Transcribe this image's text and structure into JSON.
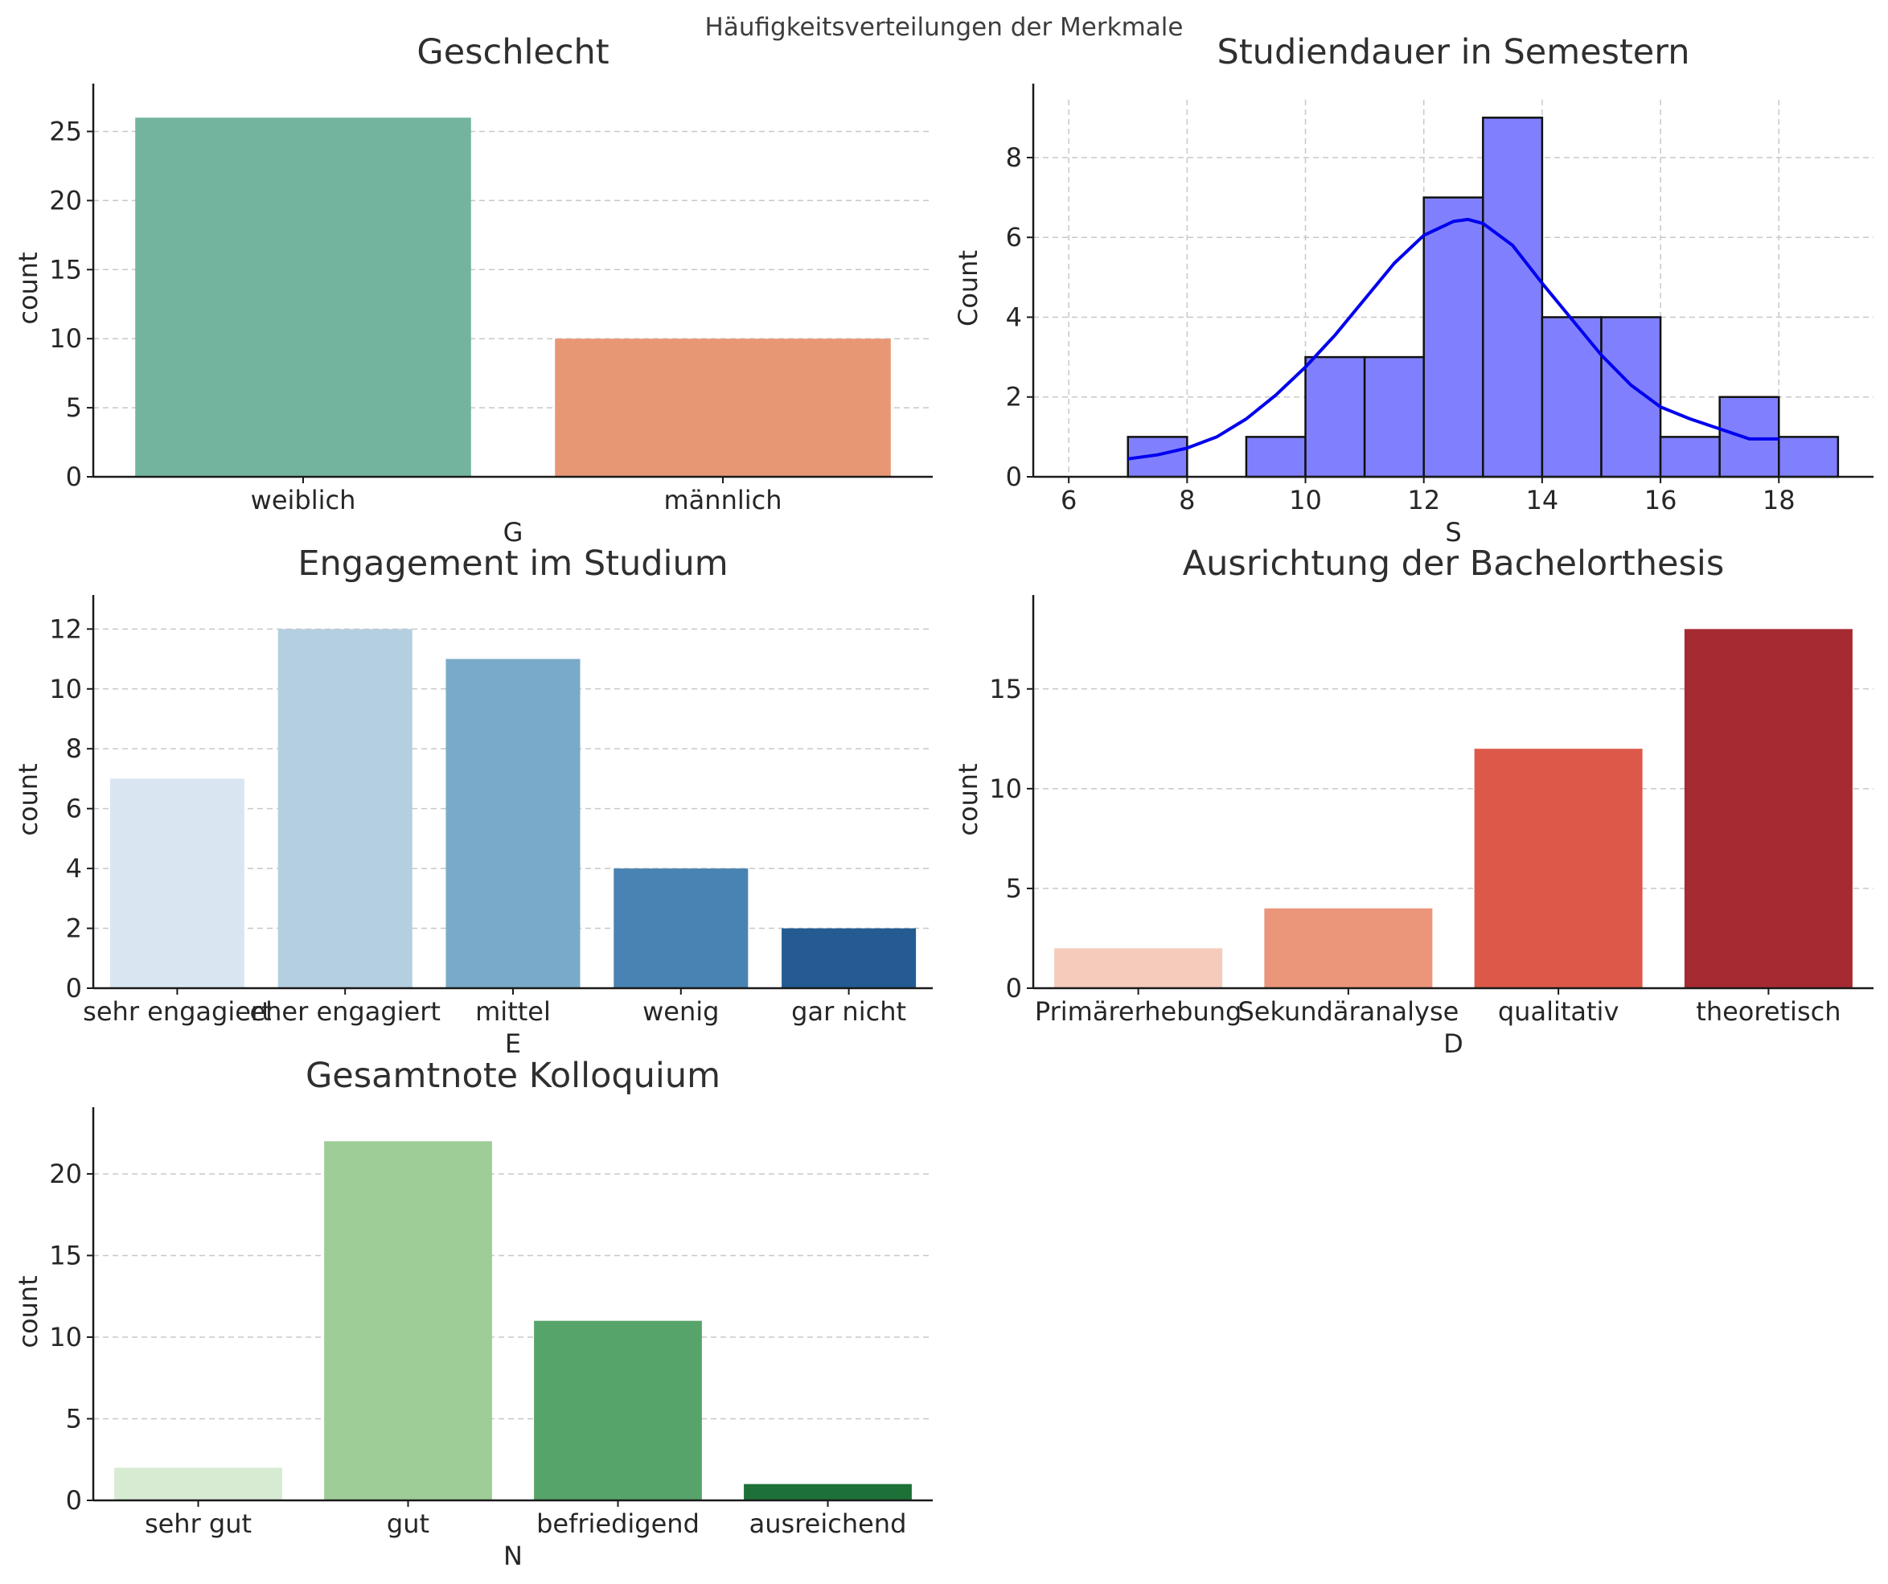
{
  "figure": {
    "suptitle": "Häufigkeitsverteilungen der Merkmale"
  },
  "chart_data": [
    {
      "type": "bar",
      "title": "Geschlecht",
      "xlabel": "G",
      "ylabel": "count",
      "categories": [
        "weiblich",
        "männlich"
      ],
      "values": [
        26,
        10
      ],
      "colors": [
        "#73b49f",
        "#e89775"
      ],
      "ylim": [
        0,
        27.3
      ],
      "yticks": [
        0,
        5,
        10,
        15,
        20,
        25
      ],
      "grid": "y"
    },
    {
      "type": "histogram",
      "title": "Studiendauer in Semestern",
      "xlabel": "S",
      "ylabel": "Count",
      "bin_edges": [
        7,
        8,
        9,
        10,
        11,
        12,
        13,
        14,
        15,
        16,
        17,
        18,
        19
      ],
      "counts": [
        1,
        0,
        1,
        3,
        3,
        7,
        9,
        4,
        4,
        1,
        2,
        1
      ],
      "bar_color": "#8080ff",
      "kde": {
        "color": "#0000ee",
        "x": [
          7,
          7.5,
          8,
          8.5,
          9,
          9.5,
          10,
          10.5,
          11,
          11.5,
          12,
          12.5,
          12.75,
          13,
          13.5,
          14,
          14.5,
          15,
          15.5,
          16,
          16.5,
          17,
          17.5,
          18
        ],
        "y": [
          0.45,
          0.55,
          0.72,
          1.0,
          1.45,
          2.05,
          2.75,
          3.55,
          4.45,
          5.35,
          6.05,
          6.4,
          6.45,
          6.35,
          5.8,
          4.85,
          3.95,
          3.05,
          2.3,
          1.75,
          1.45,
          1.2,
          0.95,
          0.95
        ]
      },
      "xlim": [
        5.4,
        19.6
      ],
      "ylim": [
        0,
        9.45
      ],
      "xticks": [
        6,
        8,
        10,
        12,
        14,
        16,
        18
      ],
      "yticks": [
        0,
        2,
        4,
        6,
        8
      ],
      "grid": "both"
    },
    {
      "type": "bar",
      "title": "Engagement im Studium",
      "xlabel": "E",
      "ylabel": "count",
      "categories": [
        "sehr engagiert",
        "eher engagiert",
        "mittel",
        "wenig",
        "gar nicht"
      ],
      "values": [
        7,
        12,
        11,
        4,
        2
      ],
      "colors": [
        "#d9e6f2",
        "#b3cfe0",
        "#79aac9",
        "#4883b3",
        "#235b92"
      ],
      "ylim": [
        0,
        12.6
      ],
      "yticks": [
        0,
        2,
        4,
        6,
        8,
        10,
        12
      ],
      "grid": "y"
    },
    {
      "type": "bar",
      "title": "Ausrichtung der Bachelorthesis",
      "xlabel": "D",
      "ylabel": "count",
      "categories": [
        "Primärerhebung",
        "Sekundäranalyse",
        "qualitativ",
        "theoretisch"
      ],
      "values": [
        2,
        4,
        12,
        18
      ],
      "colors": [
        "#f5cbbc",
        "#eb957a",
        "#dc594a",
        "#a62a31"
      ],
      "ylim": [
        0,
        18.9
      ],
      "yticks": [
        0,
        5,
        10,
        15
      ],
      "grid": "y"
    },
    {
      "type": "bar",
      "title": "Gesamtnote Kolloquium",
      "xlabel": "N",
      "ylabel": "count",
      "categories": [
        "sehr gut",
        "gut",
        "befriedigend",
        "ausreichend"
      ],
      "values": [
        2,
        22,
        11,
        1
      ],
      "colors": [
        "#d7ebd3",
        "#9ecd98",
        "#57a46a",
        "#1d7037"
      ],
      "ylim": [
        0,
        23.1
      ],
      "yticks": [
        0,
        5,
        10,
        15,
        20
      ],
      "grid": "y"
    }
  ]
}
